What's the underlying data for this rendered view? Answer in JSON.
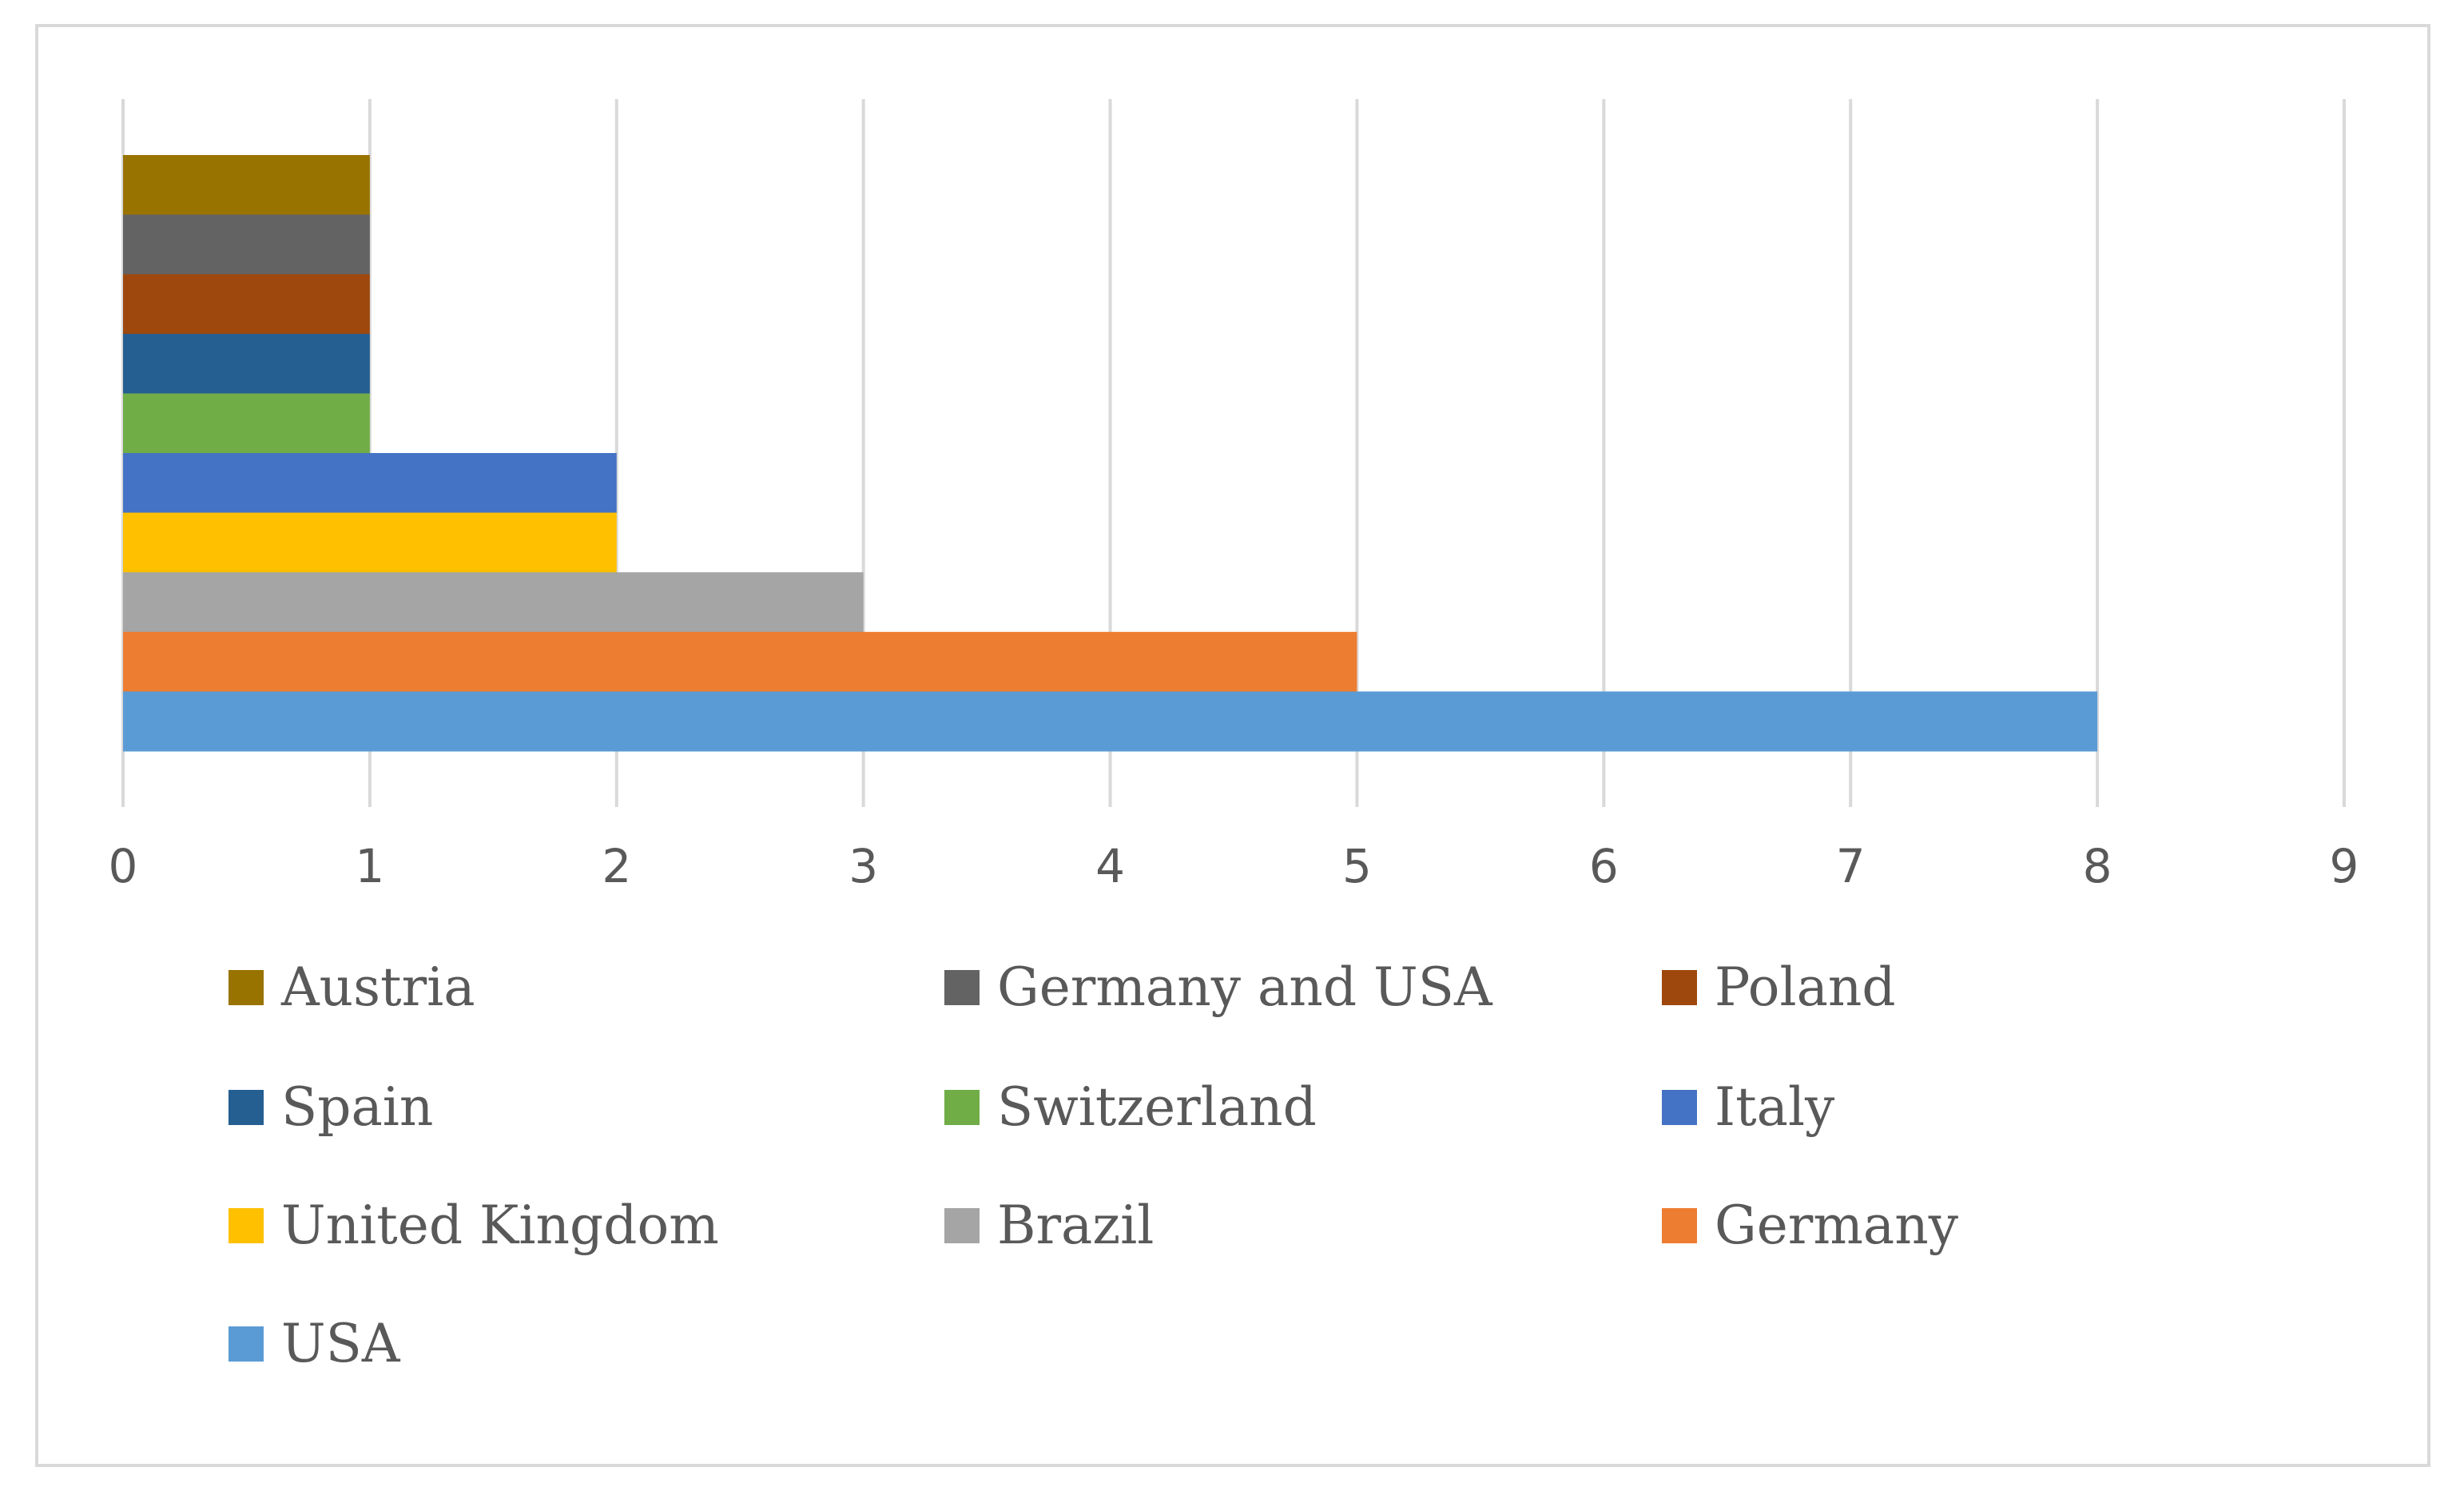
{
  "chart_data": {
    "type": "bar",
    "orientation": "horizontal",
    "title": "",
    "xlabel": "",
    "ylabel": "",
    "xlim": [
      0,
      9
    ],
    "ticks": [
      "0",
      "1",
      "2",
      "3",
      "4",
      "5",
      "6",
      "7",
      "8",
      "9"
    ],
    "grid": true,
    "legend_position": "bottom",
    "series": [
      {
        "name": "USA",
        "value": 8,
        "color": "#5b9bd5"
      },
      {
        "name": "Germany",
        "value": 5,
        "color": "#ed7d31"
      },
      {
        "name": "Brazil",
        "value": 3,
        "color": "#a5a5a5"
      },
      {
        "name": "United Kingdom",
        "value": 2,
        "color": "#ffc000"
      },
      {
        "name": "Italy",
        "value": 2,
        "color": "#4472c4"
      },
      {
        "name": "Switzerland",
        "value": 1,
        "color": "#70ad47"
      },
      {
        "name": "Spain",
        "value": 1,
        "color": "#255e91"
      },
      {
        "name": "Poland",
        "value": 1,
        "color": "#9e480e"
      },
      {
        "name": "Germany and USA",
        "value": 1,
        "color": "#636363"
      },
      {
        "name": "Austria",
        "value": 1,
        "color": "#997300"
      }
    ],
    "legend_order": [
      "Austria",
      "Germany and USA",
      "Poland",
      "Spain",
      "Switzerland",
      "Italy",
      "United Kingdom",
      "Brazil",
      "Germany",
      "USA"
    ]
  }
}
